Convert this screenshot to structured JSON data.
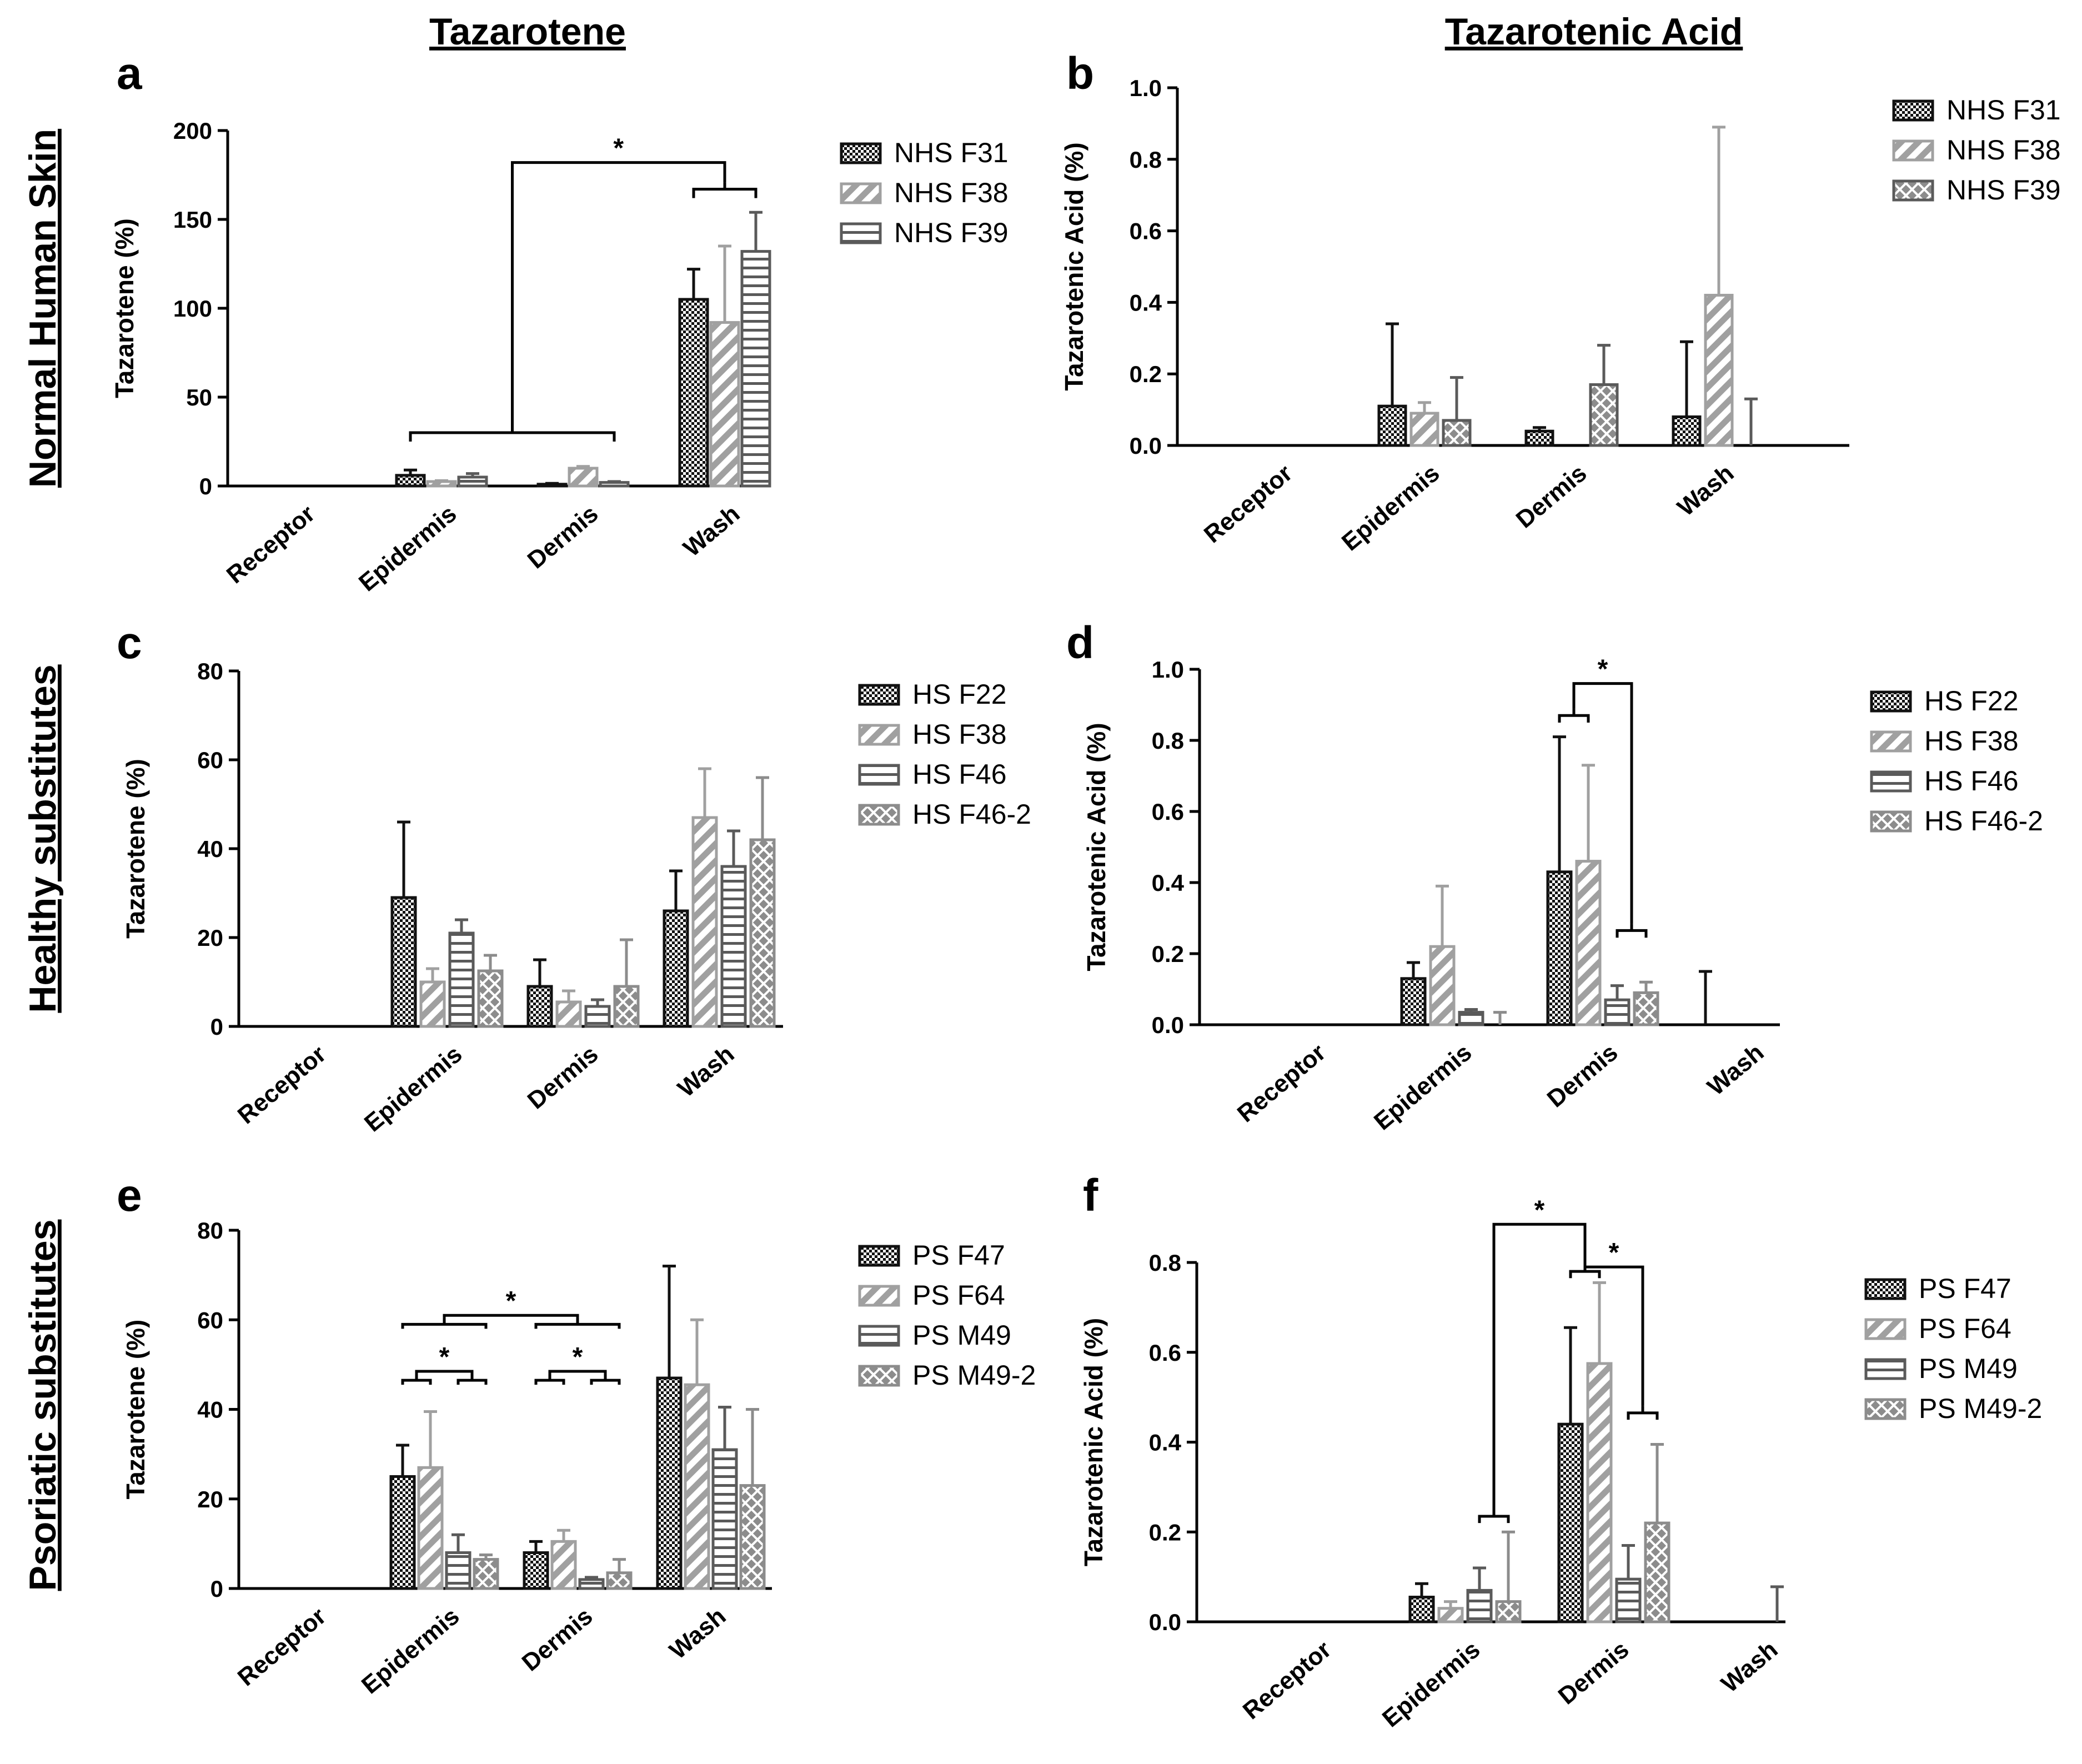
{
  "column_titles": [
    "Tazarotene",
    "Tazarotenic Acid"
  ],
  "row_titles": [
    "Normal Human Skin",
    "Healthy substitutes",
    "Psoriatic substitutes"
  ],
  "significance_marker": "*",
  "colors": {
    "series1": "#111111",
    "series2": "#a0a0a0",
    "series3": "#5a5a5a",
    "series4": "#8c8c8c"
  },
  "chart_data": [
    {
      "panel": "a",
      "type": "bar",
      "ylabel": "Tazarotene (%)",
      "ylim": [
        0,
        200
      ],
      "yticks": [
        0,
        50,
        100,
        150,
        200
      ],
      "ytick_labels": [
        "0",
        "50",
        "100",
        "150",
        "200"
      ],
      "categories": [
        "Receptor",
        "Epidermis",
        "Dermis",
        "Wash"
      ],
      "series": [
        {
          "name": "NHS F31",
          "pattern": "checker",
          "color": "#111111",
          "values": [
            0,
            6,
            1,
            105
          ],
          "errors": [
            0,
            3,
            0.5,
            17
          ]
        },
        {
          "name": "NHS F38",
          "pattern": "diagonal",
          "color": "#a0a0a0",
          "values": [
            0,
            2.5,
            10,
            92
          ],
          "errors": [
            0,
            0.5,
            1,
            43
          ]
        },
        {
          "name": "NHS F39",
          "pattern": "horizontal",
          "color": "#5a5a5a",
          "values": [
            0,
            5,
            2,
            132
          ],
          "errors": [
            0,
            2,
            0.5,
            22
          ]
        }
      ],
      "brackets": [
        {
          "label": "",
          "left_cat": 1,
          "left_series": 0,
          "right_cat": 2,
          "right_series": 2,
          "y": 30,
          "tick_down": 5,
          "peak": false
        },
        {
          "label": "",
          "left_cat": 3,
          "left_series": 0,
          "right_cat": 3,
          "right_series": 2,
          "y": 167,
          "tick_down": 5,
          "peak": true
        },
        {
          "label": "*",
          "left_x_of_bracket": 0,
          "right_x_of_bracket": 1,
          "y": 182,
          "tick_down_left": 152,
          "tick_down_right": 10
        }
      ]
    },
    {
      "panel": "b",
      "type": "bar",
      "ylabel": "Tazarotenic Acid  (%)",
      "ylim": [
        0,
        1.0
      ],
      "yticks": [
        0,
        0.2,
        0.4,
        0.6,
        0.8,
        1.0
      ],
      "ytick_labels": [
        "0.0",
        "0.2",
        "0.4",
        "0.6",
        "0.8",
        "1.0"
      ],
      "categories": [
        "Receptor",
        "Epidermis",
        "Dermis",
        "Wash"
      ],
      "series": [
        {
          "name": "NHS F31",
          "pattern": "checker",
          "color": "#111111",
          "values": [
            0,
            0.11,
            0.04,
            0.08
          ],
          "errors": [
            0,
            0.23,
            0.01,
            0.21
          ]
        },
        {
          "name": "NHS F38",
          "pattern": "diagonal",
          "color": "#a0a0a0",
          "values": [
            0,
            0.09,
            0,
            0.42
          ],
          "errors": [
            0,
            0.03,
            0,
            0.47
          ]
        },
        {
          "name": "NHS F39",
          "pattern": "crosshatch",
          "color": "#5a5a5a",
          "values": [
            0,
            0.07,
            0.17,
            0
          ],
          "errors": [
            0,
            0.12,
            0.11,
            0.13
          ]
        }
      ],
      "brackets": []
    },
    {
      "panel": "c",
      "type": "bar",
      "ylabel": "Tazarotene (%)",
      "ylim": [
        0,
        80
      ],
      "yticks": [
        0,
        20,
        40,
        60,
        80
      ],
      "ytick_labels": [
        "0",
        "20",
        "40",
        "60",
        "80"
      ],
      "categories": [
        "Receptor",
        "Epidermis",
        "Dermis",
        "Wash"
      ],
      "series": [
        {
          "name": "HS F22",
          "pattern": "checker",
          "color": "#111111",
          "values": [
            0,
            29,
            9,
            26
          ],
          "errors": [
            0,
            17,
            6,
            9
          ]
        },
        {
          "name": "HS F38",
          "pattern": "diagonal",
          "color": "#a0a0a0",
          "values": [
            0,
            10,
            5.5,
            47
          ],
          "errors": [
            0,
            3,
            2.5,
            11
          ]
        },
        {
          "name": "HS F46",
          "pattern": "horizontal",
          "color": "#5a5a5a",
          "values": [
            0,
            21,
            4.5,
            36
          ],
          "errors": [
            0,
            3,
            1.5,
            8
          ]
        },
        {
          "name": "HS F46-2",
          "pattern": "crosshatch",
          "color": "#8c8c8c",
          "values": [
            0,
            12.5,
            9,
            42
          ],
          "errors": [
            0,
            3.5,
            10.5,
            14
          ]
        }
      ],
      "brackets": []
    },
    {
      "panel": "d",
      "type": "bar",
      "ylabel": "Tazarotenic Acid  (%)",
      "ylim": [
        0,
        1.0
      ],
      "yticks": [
        0,
        0.2,
        0.4,
        0.6,
        0.8,
        1.0
      ],
      "ytick_labels": [
        "0.0",
        "0.2",
        "0.4",
        "0.6",
        "0.8",
        "1.0"
      ],
      "categories": [
        "Receptor",
        "Epidermis",
        "Dermis",
        "Wash"
      ],
      "series": [
        {
          "name": "HS F22",
          "pattern": "checker",
          "color": "#111111",
          "values": [
            0,
            0.13,
            0.43,
            0
          ],
          "errors": [
            0,
            0.045,
            0.38,
            0.15
          ]
        },
        {
          "name": "HS F38",
          "pattern": "diagonal",
          "color": "#a0a0a0",
          "values": [
            0,
            0.22,
            0.46,
            0
          ],
          "errors": [
            0,
            0.17,
            0.27,
            0
          ]
        },
        {
          "name": "HS F46",
          "pattern": "horizontal",
          "color": "#5a5a5a",
          "values": [
            0,
            0.035,
            0.07,
            0
          ],
          "errors": [
            0,
            0.008,
            0.04,
            0
          ]
        },
        {
          "name": "HS F46-2",
          "pattern": "crosshatch",
          "color": "#8c8c8c",
          "values": [
            0,
            0,
            0.09,
            0
          ],
          "errors": [
            0,
            0.035,
            0.03,
            0
          ]
        }
      ],
      "brackets": [
        {
          "label": "",
          "left_cat": 2,
          "left_series": 0,
          "right_cat": 2,
          "right_series": 1,
          "y": 0.87,
          "tick_down": 0.02,
          "peak": true
        },
        {
          "label": "",
          "left_cat": 2,
          "left_series": 2,
          "right_cat": 2,
          "right_series": 3,
          "y": 0.265,
          "tick_down": 0.02,
          "peak": true
        },
        {
          "label": "*",
          "left_x_of_bracket": 0,
          "right_x_of_bracket": 1,
          "y": 0.96,
          "tick_down_left": 0.09,
          "tick_down_right": 0.695
        }
      ]
    },
    {
      "panel": "e",
      "type": "bar",
      "ylabel": "Tazarotene (%)",
      "ylim": [
        0,
        80
      ],
      "yticks": [
        0,
        20,
        40,
        60,
        80
      ],
      "ytick_labels": [
        "0",
        "20",
        "40",
        "60",
        "80"
      ],
      "categories": [
        "Receptor",
        "Epidermis",
        "Dermis",
        "Wash"
      ],
      "series": [
        {
          "name": "PS F47",
          "pattern": "checker",
          "color": "#111111",
          "values": [
            0,
            25,
            8,
            47
          ],
          "errors": [
            0,
            7,
            2.5,
            25
          ]
        },
        {
          "name": "PS F64",
          "pattern": "diagonal",
          "color": "#a0a0a0",
          "values": [
            0,
            27,
            10.5,
            45.5
          ],
          "errors": [
            0,
            12.5,
            2.5,
            14.5
          ]
        },
        {
          "name": "PS M49",
          "pattern": "horizontal",
          "color": "#5a5a5a",
          "values": [
            0,
            8,
            2,
            31
          ],
          "errors": [
            0,
            4,
            0.5,
            9.5
          ]
        },
        {
          "name": "PS M49-2",
          "pattern": "crosshatch",
          "color": "#8c8c8c",
          "values": [
            0,
            6.5,
            3.5,
            23
          ],
          "errors": [
            0,
            1,
            3,
            17
          ]
        }
      ],
      "brackets": [
        {
          "label": "",
          "left_cat": 1,
          "left_series": 0,
          "right_cat": 1,
          "right_series": 1,
          "y": 46.5,
          "tick_down": 1,
          "peak": true
        },
        {
          "label": "",
          "left_cat": 1,
          "left_series": 2,
          "right_cat": 1,
          "right_series": 3,
          "y": 46.5,
          "tick_down": 1,
          "peak": true
        },
        {
          "label": "",
          "left_cat": 2,
          "left_series": 0,
          "right_cat": 2,
          "right_series": 1,
          "y": 46.5,
          "tick_down": 1,
          "peak": true
        },
        {
          "label": "",
          "left_cat": 2,
          "left_series": 2,
          "right_cat": 2,
          "right_series": 3,
          "y": 46.5,
          "tick_down": 1,
          "peak": true
        },
        {
          "label": "*",
          "left_x_of_bracket": 0,
          "right_x_of_bracket": 1,
          "y": 48.5,
          "tick_down_left": 1,
          "tick_down_right": 1
        },
        {
          "label": "*",
          "left_x_of_bracket": 2,
          "right_x_of_bracket": 3,
          "y": 48.5,
          "tick_down_left": 1,
          "tick_down_right": 1
        },
        {
          "label": "",
          "left_cat": 1,
          "left_series": 0,
          "right_cat": 1,
          "right_series": 3,
          "y": 59,
          "tick_down": 1,
          "peak": true
        },
        {
          "label": "",
          "left_cat": 2,
          "left_series": 0,
          "right_cat": 2,
          "right_series": 3,
          "y": 59,
          "tick_down": 1,
          "peak": true
        },
        {
          "label": "*",
          "left_x_of_bracket": 6,
          "right_x_of_bracket": 7,
          "y": 61,
          "tick_down_left": 1,
          "tick_down_right": 1
        }
      ]
    },
    {
      "panel": "f",
      "type": "bar",
      "ylabel": "Tazarotenic Acid  (%)",
      "ylim": [
        0,
        0.8
      ],
      "yticks": [
        0,
        0.2,
        0.4,
        0.6,
        0.8
      ],
      "ytick_labels": [
        "0.0",
        "0.2",
        "0.4",
        "0.6",
        "0.8"
      ],
      "categories": [
        "Receptor",
        "Epidermis",
        "Dermis",
        "Wash"
      ],
      "series": [
        {
          "name": "PS F47",
          "pattern": "checker",
          "color": "#111111",
          "values": [
            0,
            0.055,
            0.44,
            0
          ],
          "errors": [
            0,
            0.03,
            0.215,
            0
          ]
        },
        {
          "name": "PS F64",
          "pattern": "diagonal",
          "color": "#a0a0a0",
          "values": [
            0,
            0.03,
            0.575,
            0
          ],
          "errors": [
            0,
            0.015,
            0.18,
            0
          ]
        },
        {
          "name": "PS M49",
          "pattern": "horizontal",
          "color": "#5a5a5a",
          "values": [
            0,
            0.07,
            0.095,
            0
          ],
          "errors": [
            0,
            0.05,
            0.075,
            0.078
          ]
        },
        {
          "name": "PS M49-2",
          "pattern": "crosshatch",
          "color": "#8c8c8c",
          "values": [
            0,
            0.045,
            0.22,
            0
          ],
          "errors": [
            0,
            0.155,
            0.175,
            0
          ]
        }
      ],
      "brackets": [
        {
          "label": "",
          "left_cat": 1,
          "left_series": 2,
          "right_cat": 1,
          "right_series": 3,
          "y": 0.235,
          "tick_down": 0.015,
          "peak": true
        },
        {
          "label": "",
          "left_cat": 2,
          "left_series": 0,
          "right_cat": 2,
          "right_series": 1,
          "y": 0.78,
          "tick_down": 0.015,
          "peak": true
        },
        {
          "label": "",
          "left_cat": 2,
          "left_series": 2,
          "right_cat": 2,
          "right_series": 3,
          "y": 0.465,
          "tick_down": 0.015,
          "peak": true
        },
        {
          "label": "*",
          "left_x_of_bracket": 1,
          "right_x_of_bracket": 2,
          "y": 0.79,
          "tick_down_left": 0.01,
          "tick_down_right": 0.325
        },
        {
          "label": "*",
          "left_x_of_bracket": 0,
          "right_x_of_bracket": 1,
          "y": 0.885,
          "tick_down_left": 0.65,
          "tick_down_right": 0.05
        }
      ]
    }
  ]
}
